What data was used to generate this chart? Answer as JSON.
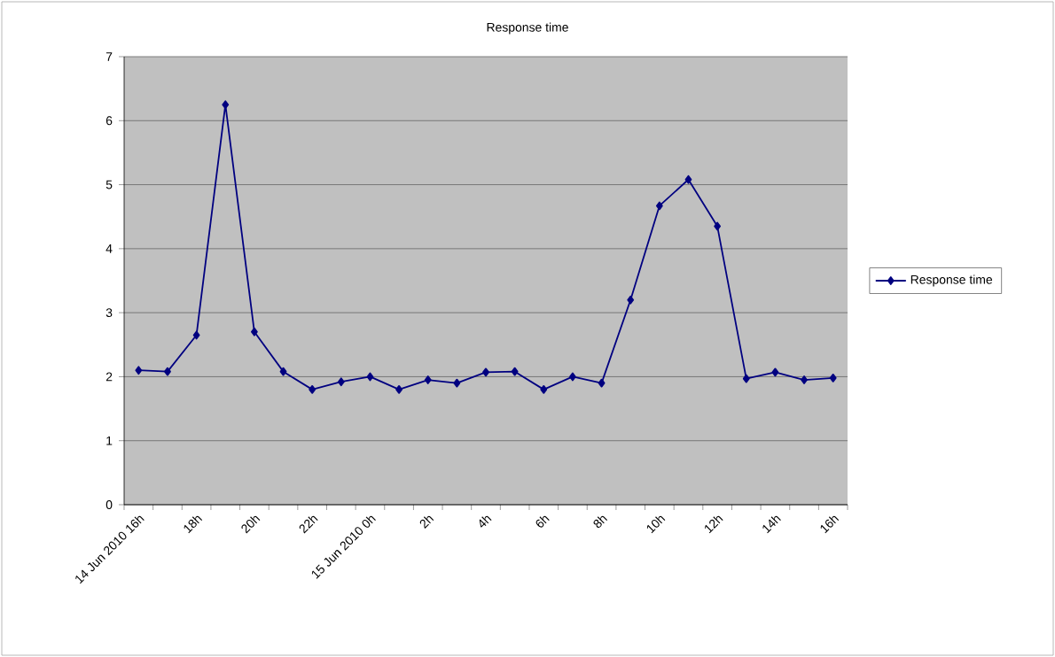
{
  "chart_data": {
    "type": "line",
    "title": "Response time",
    "categories": [
      "14 Jun 2010 16h",
      null,
      "18h",
      null,
      "20h",
      null,
      "22h",
      null,
      "15 Jun 2010 0h",
      null,
      "2h",
      null,
      "4h",
      null,
      "6h",
      null,
      "8h",
      null,
      "10h",
      null,
      "12h",
      null,
      "14h",
      null,
      "16h"
    ],
    "series": [
      {
        "name": "Response time",
        "color": "#000080",
        "values": [
          2.1,
          2.08,
          2.65,
          6.25,
          2.7,
          2.08,
          1.8,
          1.92,
          2.0,
          1.8,
          1.95,
          1.9,
          2.07,
          2.08,
          1.8,
          2.0,
          1.9,
          3.2,
          4.67,
          5.08,
          4.35,
          1.97,
          2.07,
          1.95,
          1.98
        ]
      }
    ],
    "ylim": [
      0,
      7
    ],
    "yticks": [
      0,
      1,
      2,
      3,
      4,
      5,
      6,
      7
    ],
    "grid": "y",
    "legend": "right",
    "marker": "diamond",
    "line_style": "solid"
  }
}
